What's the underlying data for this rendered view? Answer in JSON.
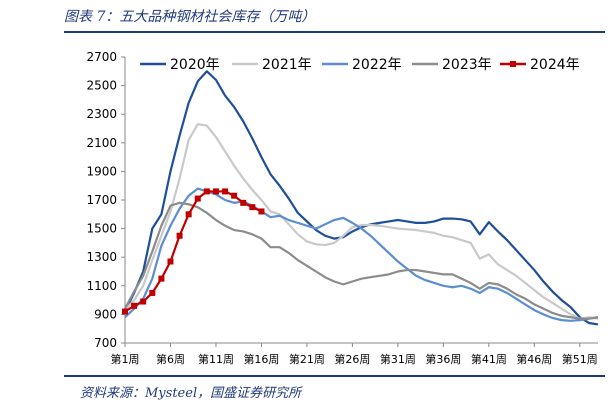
{
  "header": {
    "caption": "图表 7：五大品种钢材社会库存（万吨）"
  },
  "footer": {
    "source": "资料来源：Mysteel，国盛证券研究所"
  },
  "chart_data": {
    "type": "line",
    "title": "",
    "xlabel": "",
    "ylabel": "",
    "ylim": [
      700,
      2700
    ],
    "yticks": [
      700,
      900,
      1100,
      1300,
      1500,
      1700,
      1900,
      2100,
      2300,
      2500,
      2700
    ],
    "xlim": [
      1,
      53
    ],
    "xticks": [
      {
        "week": 1,
        "label": "第1周"
      },
      {
        "week": 6,
        "label": "第6周"
      },
      {
        "week": 11,
        "label": "第11周"
      },
      {
        "week": 16,
        "label": "第16周"
      },
      {
        "week": 21,
        "label": "第21周"
      },
      {
        "week": 26,
        "label": "第26周"
      },
      {
        "week": 31,
        "label": "第31周"
      },
      {
        "week": 36,
        "label": "第36周"
      },
      {
        "week": 41,
        "label": "第41周"
      },
      {
        "week": 46,
        "label": "第46周"
      },
      {
        "week": 51,
        "label": "第51周"
      }
    ],
    "grid": false,
    "legend_position": "top",
    "series": [
      {
        "name": "2020年",
        "color": "#1f4e9b",
        "marker": "none",
        "values": [
          920,
          1050,
          1200,
          1500,
          1600,
          1900,
          2150,
          2380,
          2530,
          2600,
          2540,
          2430,
          2350,
          2250,
          2130,
          2000,
          1880,
          1800,
          1710,
          1610,
          1550,
          1490,
          1450,
          1430,
          1440,
          1480,
          1510,
          1530,
          1540,
          1550,
          1560,
          1550,
          1540,
          1540,
          1550,
          1570,
          1570,
          1565,
          1550,
          1460,
          1545,
          1480,
          1420,
          1350,
          1280,
          1210,
          1130,
          1060,
          1000,
          950,
          880,
          840,
          830
        ]
      },
      {
        "name": "2021年",
        "color": "#c9c9c9",
        "marker": "none",
        "values": [
          930,
          1000,
          1100,
          1280,
          1450,
          1620,
          1850,
          2120,
          2230,
          2220,
          2140,
          2040,
          1940,
          1850,
          1770,
          1700,
          1620,
          1600,
          1530,
          1460,
          1410,
          1390,
          1385,
          1400,
          1450,
          1510,
          1525,
          1525,
          1520,
          1510,
          1500,
          1495,
          1490,
          1480,
          1470,
          1450,
          1440,
          1420,
          1400,
          1290,
          1320,
          1250,
          1210,
          1170,
          1120,
          1070,
          1020,
          980,
          940,
          900,
          870,
          880,
          870
        ]
      },
      {
        "name": "2022年",
        "color": "#5b8ed0",
        "marker": "none",
        "values": [
          880,
          940,
          1010,
          1150,
          1380,
          1520,
          1640,
          1730,
          1780,
          1760,
          1740,
          1700,
          1680,
          1690,
          1660,
          1620,
          1580,
          1590,
          1560,
          1540,
          1520,
          1500,
          1530,
          1560,
          1575,
          1540,
          1500,
          1450,
          1390,
          1330,
          1270,
          1220,
          1170,
          1140,
          1120,
          1100,
          1090,
          1100,
          1080,
          1050,
          1090,
          1080,
          1050,
          1010,
          970,
          930,
          900,
          875,
          860,
          855,
          860,
          870,
          880
        ]
      },
      {
        "name": "2023年",
        "color": "#8c8c8c",
        "marker": "none",
        "values": [
          940,
          1060,
          1170,
          1340,
          1520,
          1660,
          1680,
          1670,
          1650,
          1610,
          1560,
          1520,
          1490,
          1480,
          1460,
          1430,
          1370,
          1370,
          1330,
          1280,
          1240,
          1200,
          1160,
          1130,
          1110,
          1130,
          1150,
          1160,
          1170,
          1180,
          1200,
          1210,
          1210,
          1200,
          1190,
          1180,
          1180,
          1150,
          1120,
          1080,
          1120,
          1110,
          1080,
          1040,
          1010,
          970,
          940,
          910,
          890,
          880,
          870,
          870,
          880
        ]
      },
      {
        "name": "2024年",
        "color": "#c00000",
        "marker": "square",
        "values": [
          920,
          960,
          990,
          1050,
          1150,
          1270,
          1450,
          1600,
          1710,
          1760,
          1760,
          1760,
          1730,
          1680,
          1650,
          1620
        ]
      }
    ]
  }
}
